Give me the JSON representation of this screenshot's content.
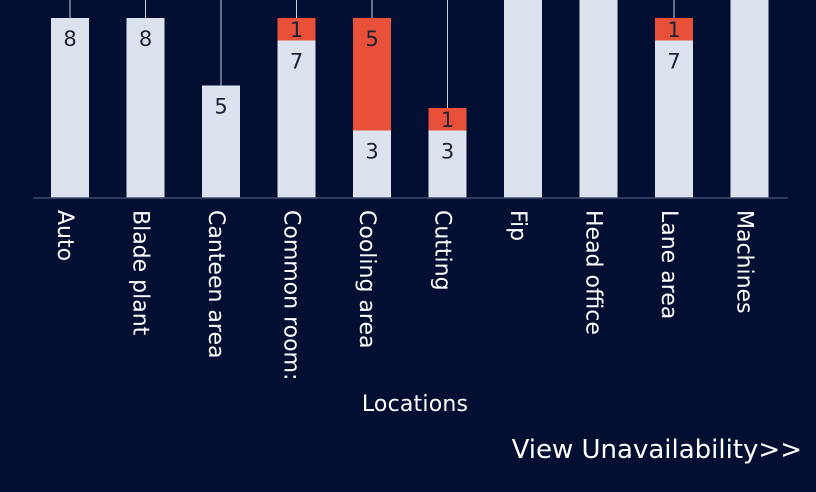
{
  "chart_data": {
    "type": "bar",
    "stacked": true,
    "categories": [
      "Auto",
      "Blade plant",
      "Canteen area",
      "Common room:",
      "Cooling area",
      "Cutting",
      "Fip",
      "Head office",
      "Lane area",
      "Machines"
    ],
    "series": [
      {
        "color": "#dce3ee",
        "values": [
          8,
          8,
          5,
          7,
          3,
          3,
          10,
          10,
          7,
          10
        ]
      },
      {
        "color": "#e8503a",
        "values": [
          0,
          0,
          0,
          1,
          5,
          1,
          0,
          0,
          1,
          0
        ]
      }
    ],
    "value_labels": {
      "light": [
        "8",
        "8",
        "5",
        "7",
        "3",
        "3",
        "",
        "",
        "7",
        ""
      ],
      "red": [
        "",
        "",
        "",
        "1",
        "5",
        "1",
        "",
        "",
        "1",
        ""
      ]
    },
    "xlabel": "Locations",
    "grid": false,
    "legend": "none"
  },
  "footer": {
    "view_link": "View Unavailability>>"
  }
}
